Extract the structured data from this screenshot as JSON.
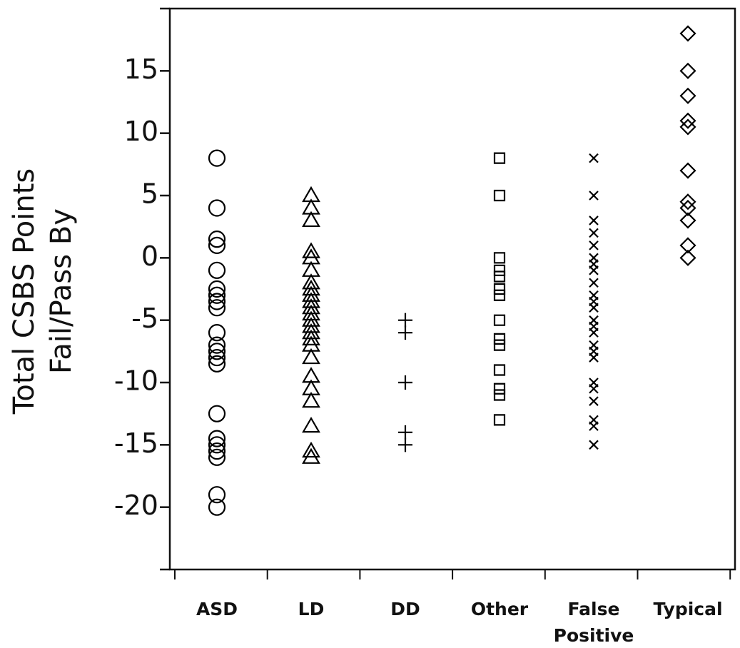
{
  "chart_data": {
    "type": "strip",
    "y_label": [
      "Total CSBS Points",
      "Fail/Pass By"
    ],
    "categories": [
      "ASD",
      "LD",
      "DD",
      "Other",
      "False Positive",
      "Typical"
    ],
    "markers": [
      "circle",
      "triangle",
      "plus",
      "square",
      "cross",
      "diamond"
    ],
    "color": "#000000",
    "values": [
      [
        8,
        4,
        1.5,
        1,
        -1,
        -2.5,
        -3,
        -3.5,
        -4,
        -6,
        -7,
        -7.5,
        -8,
        -8.5,
        -12.5,
        -14.5,
        -15,
        -15.5,
        -16,
        -19,
        -20
      ],
      [
        5,
        4,
        3,
        0.5,
        0,
        -1,
        -2,
        -2.5,
        -3,
        -3.5,
        -4,
        -4.5,
        -5,
        -5.5,
        -6,
        -6.5,
        -7,
        -8,
        -9.5,
        -10.5,
        -11.5,
        -13.5,
        -15.5,
        -16
      ],
      [
        -5,
        -6,
        -10,
        -14,
        -15
      ],
      [
        8,
        5,
        0,
        -1,
        -1.5,
        -2.5,
        -3,
        -5,
        -6.5,
        -7,
        -9,
        -10.5,
        -11,
        -13
      ],
      [
        8,
        5,
        3,
        2,
        1,
        0,
        -0.5,
        -1,
        -2,
        -3,
        -3.5,
        -4,
        -5,
        -5.5,
        -6,
        -7,
        -7.5,
        -8,
        -10,
        -10.5,
        -11.5,
        -13,
        -13.5,
        -15
      ],
      [
        18,
        15,
        13,
        11,
        10.5,
        7,
        4.5,
        4,
        3,
        1,
        0
      ]
    ],
    "ylim": [
      -25,
      20
    ],
    "yticks": [
      -20,
      -15,
      -10,
      -5,
      0,
      5,
      10,
      15
    ]
  }
}
